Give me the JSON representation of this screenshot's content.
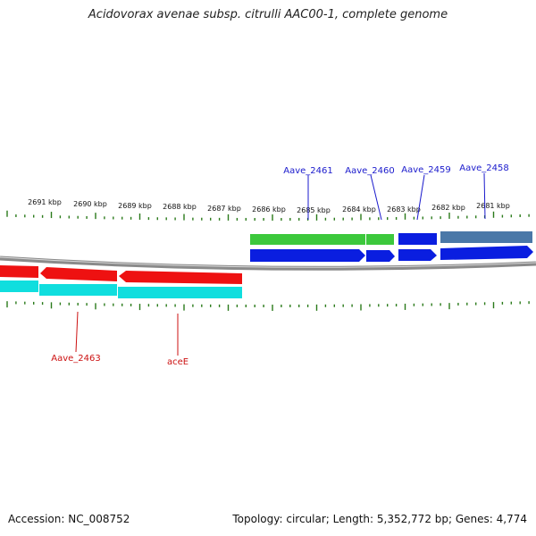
{
  "title": "Acidovorax avenae subsp. citrulli AAC00-1, complete genome",
  "footer": {
    "accession": "Accession: NC_008752",
    "summary": "Topology: circular; Length: 5,352,772 bp; Genes: 4,774"
  },
  "ruler_labels": [
    "2691 kbp",
    "2690 kbp",
    "2689 kbp",
    "2688 kbp",
    "2687 kbp",
    "2686 kbp",
    "2685 kbp",
    "2684 kbp",
    "2683 kbp",
    "2682 kbp",
    "2681 kbp"
  ],
  "gene_labels": {
    "forward": [
      "Aave_2461",
      "Aave_2460",
      "Aave_2459",
      "Aave_2458"
    ],
    "reverse": [
      "Aave_2463",
      "aceE"
    ]
  },
  "colors": {
    "forward_label": "#1a1acc",
    "reverse_label": "#cc1111",
    "forward_gene": "#0a1ee0",
    "reverse_gene": "#ee1111",
    "forward_cds": "#3cc83c",
    "forward_other": "#4a78a8",
    "reverse_cds": "#10dede",
    "tick": "#2a7a1a",
    "backbone": "#8a8a8a"
  }
}
